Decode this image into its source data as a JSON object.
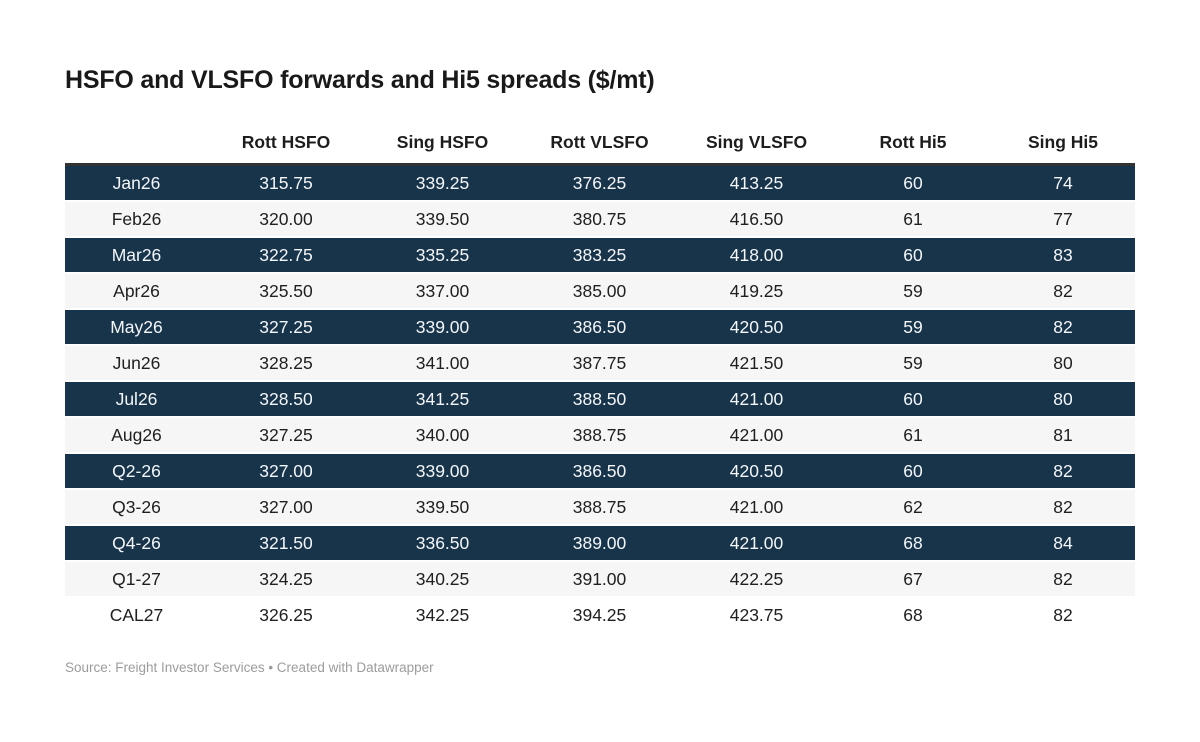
{
  "title": "HSFO and VLSFO forwards and Hi5 spreads ($/mt)",
  "footer": {
    "text": "Source: Freight Investor Services • Created with Datawrapper"
  },
  "colors": {
    "highlight_row_bg": "#17344b",
    "stripe_row_bg": "#f6f6f6",
    "header_rule": "#333333",
    "highlight_row_text": "#f4f6f8",
    "body_text": "#202020",
    "footer_text": "#9c9c9c"
  },
  "chart_data": {
    "type": "table",
    "title": "HSFO and VLSFO forwards and Hi5 spreads ($/mt)",
    "columns": [
      "",
      "Rott HSFO",
      "Sing HSFO",
      "Rott VLSFO",
      "Sing VLSFO",
      "Rott Hi5",
      "Sing Hi5"
    ],
    "rows": [
      {
        "label": "Jan26",
        "values": [
          "315.75",
          "339.25",
          "376.25",
          "413.25",
          "60",
          "74"
        ],
        "highlighted": true
      },
      {
        "label": "Feb26",
        "values": [
          "320.00",
          "339.50",
          "380.75",
          "416.50",
          "61",
          "77"
        ],
        "highlighted": false
      },
      {
        "label": "Mar26",
        "values": [
          "322.75",
          "335.25",
          "383.25",
          "418.00",
          "60",
          "83"
        ],
        "highlighted": true
      },
      {
        "label": "Apr26",
        "values": [
          "325.50",
          "337.00",
          "385.00",
          "419.25",
          "59",
          "82"
        ],
        "highlighted": false
      },
      {
        "label": "May26",
        "values": [
          "327.25",
          "339.00",
          "386.50",
          "420.50",
          "59",
          "82"
        ],
        "highlighted": true
      },
      {
        "label": "Jun26",
        "values": [
          "328.25",
          "341.00",
          "387.75",
          "421.50",
          "59",
          "80"
        ],
        "highlighted": false
      },
      {
        "label": "Jul26",
        "values": [
          "328.50",
          "341.25",
          "388.50",
          "421.00",
          "60",
          "80"
        ],
        "highlighted": true
      },
      {
        "label": "Aug26",
        "values": [
          "327.25",
          "340.00",
          "388.75",
          "421.00",
          "61",
          "81"
        ],
        "highlighted": false
      },
      {
        "label": "Q2-26",
        "values": [
          "327.00",
          "339.00",
          "386.50",
          "420.50",
          "60",
          "82"
        ],
        "highlighted": true
      },
      {
        "label": "Q3-26",
        "values": [
          "327.00",
          "339.50",
          "388.75",
          "421.00",
          "62",
          "82"
        ],
        "highlighted": false
      },
      {
        "label": "Q4-26",
        "values": [
          "321.50",
          "336.50",
          "389.00",
          "421.00",
          "68",
          "84"
        ],
        "highlighted": true
      },
      {
        "label": "Q1-27",
        "values": [
          "324.25",
          "340.25",
          "391.00",
          "422.25",
          "67",
          "82"
        ],
        "highlighted": false
      },
      {
        "label": "CAL27",
        "values": [
          "326.25",
          "342.25",
          "394.25",
          "423.75",
          "68",
          "82"
        ],
        "highlighted": false
      }
    ]
  }
}
